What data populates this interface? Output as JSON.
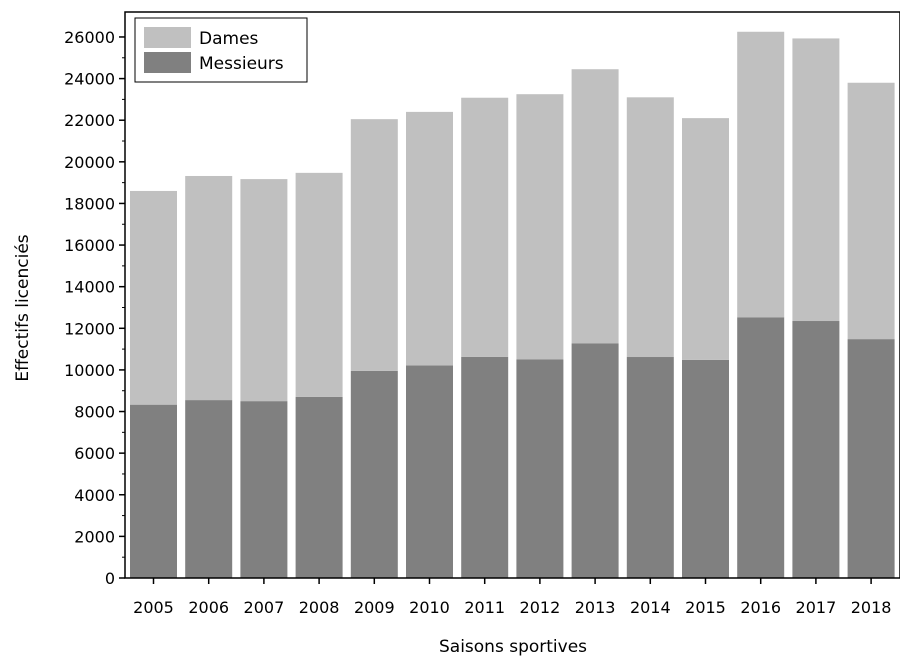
{
  "chart_data": {
    "type": "bar",
    "stacked": true,
    "categories": [
      "2005",
      "2006",
      "2007",
      "2008",
      "2009",
      "2010",
      "2011",
      "2012",
      "2013",
      "2014",
      "2015",
      "2016",
      "2017",
      "2018"
    ],
    "series": [
      {
        "name": "Messieurs",
        "color": "#808080",
        "values": [
          8330,
          8550,
          8500,
          8700,
          9950,
          10220,
          10630,
          10500,
          11270,
          10620,
          10480,
          12530,
          12350,
          11480
        ]
      },
      {
        "name": "Dames",
        "color": "#c0c0c0",
        "values": [
          10270,
          10770,
          10670,
          10770,
          12100,
          12180,
          12450,
          12750,
          13180,
          12480,
          11620,
          13720,
          13580,
          12320
        ]
      }
    ],
    "xlabel": "Saisons sportives",
    "ylabel": "Effectifs licenciés",
    "ylim": [
      0,
      27200
    ],
    "yticks": [
      0,
      2000,
      4000,
      6000,
      8000,
      10000,
      12000,
      14000,
      16000,
      18000,
      20000,
      22000,
      24000,
      26000
    ],
    "legend": {
      "position": "top-left",
      "entries": [
        {
          "label": "Dames",
          "color": "#c0c0c0"
        },
        {
          "label": "Messieurs",
          "color": "#808080"
        }
      ]
    },
    "grid": false
  }
}
